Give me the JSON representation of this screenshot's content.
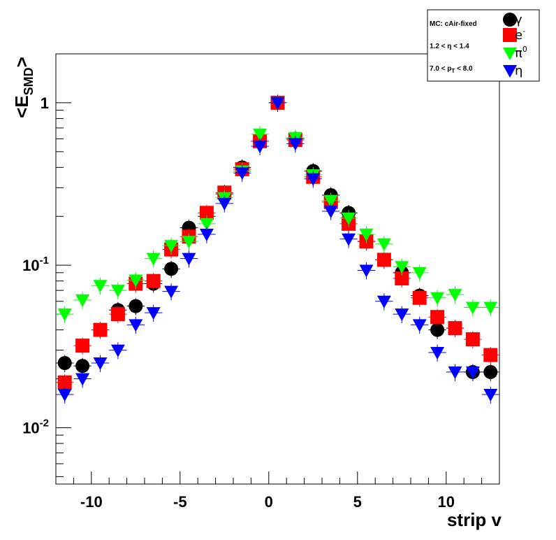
{
  "chart_data": {
    "type": "scatter",
    "xlabel": "strip v",
    "ylabel_main": "<E",
    "ylabel_sub": "SMD",
    "ylabel_end": ">",
    "xlim": [
      -12,
      13
    ],
    "ylim": [
      0.0045,
      2.0
    ],
    "yscale": "log",
    "xticks": [
      -10,
      -5,
      0,
      5,
      10
    ],
    "yticks": [
      {
        "value": 1,
        "base": "1",
        "exp": ""
      },
      {
        "value": 0.1,
        "base": "10",
        "exp": "-1"
      },
      {
        "value": 0.01,
        "base": "10",
        "exp": "-2"
      }
    ],
    "legend_position": "top-right",
    "legend_info": [
      {
        "main": "MC: cAir-fixed",
        "sub": "",
        "rest": ""
      },
      {
        "main": "1.2 < η < 1.4",
        "sub": "",
        "rest": ""
      },
      {
        "main": "7.0 < p",
        "sub": "T",
        "rest": " < 8.0"
      }
    ],
    "series": [
      {
        "name": "γ",
        "name_sup": "",
        "marker": "circle",
        "color": "#000000",
        "x": [
          -11.5,
          -10.5,
          -9.5,
          -8.5,
          -7.5,
          -6.5,
          -5.5,
          -4.5,
          -3.5,
          -2.5,
          -1.5,
          -0.5,
          0.5,
          1.5,
          2.5,
          3.5,
          4.5,
          5.5,
          6.5,
          7.5,
          8.5,
          9.5,
          10.5,
          11.5,
          12.5
        ],
        "y": [
          0.025,
          0.024,
          0.04,
          0.053,
          0.056,
          0.077,
          0.095,
          0.17,
          0.2,
          0.275,
          0.4,
          0.58,
          1.0,
          0.6,
          0.38,
          0.27,
          0.21,
          0.14,
          0.108,
          0.09,
          0.065,
          0.04,
          0.041,
          0.022,
          0.022
        ]
      },
      {
        "name": "e",
        "name_sup": "-",
        "marker": "square",
        "color": "#ff0000",
        "x": [
          -11.5,
          -10.5,
          -9.5,
          -8.5,
          -7.5,
          -6.5,
          -5.5,
          -4.5,
          -3.5,
          -2.5,
          -1.5,
          -0.5,
          0.5,
          1.5,
          2.5,
          3.5,
          4.5,
          5.5,
          6.5,
          7.5,
          8.5,
          9.5,
          10.5,
          11.5,
          12.5
        ],
        "y": [
          0.019,
          0.032,
          0.04,
          0.05,
          0.077,
          0.08,
          0.125,
          0.15,
          0.21,
          0.28,
          0.39,
          0.58,
          1.0,
          0.59,
          0.35,
          0.245,
          0.18,
          0.14,
          0.108,
          0.083,
          0.063,
          0.048,
          0.041,
          0.035,
          0.028
        ]
      },
      {
        "name": "π",
        "name_sup": "0",
        "marker": "triangle-down",
        "color": "#00ff00",
        "x": [
          -11.5,
          -10.5,
          -9.5,
          -8.5,
          -7.5,
          -6.5,
          -5.5,
          -4.5,
          -3.5,
          -2.5,
          -1.5,
          -0.5,
          0.5,
          1.5,
          2.5,
          3.5,
          4.5,
          5.5,
          6.5,
          7.5,
          8.5,
          9.5,
          10.5,
          11.5,
          12.5
        ],
        "y": [
          0.05,
          0.061,
          0.075,
          0.07,
          0.081,
          0.11,
          0.132,
          0.14,
          0.18,
          0.26,
          0.38,
          0.64,
          1.0,
          0.61,
          0.36,
          0.25,
          0.195,
          0.155,
          0.135,
          0.098,
          0.09,
          0.063,
          0.066,
          0.055,
          0.055
        ]
      },
      {
        "name": "η",
        "name_sup": "",
        "marker": "triangle-down",
        "color": "#0000ff",
        "x": [
          -11.5,
          -10.5,
          -9.5,
          -8.5,
          -7.5,
          -6.5,
          -5.5,
          -4.5,
          -3.5,
          -2.5,
          -1.5,
          -0.5,
          0.5,
          1.5,
          2.5,
          3.5,
          4.5,
          5.5,
          6.5,
          7.5,
          8.5,
          9.5,
          10.5,
          11.5,
          12.5
        ],
        "y": [
          0.016,
          0.02,
          0.025,
          0.03,
          0.043,
          0.051,
          0.069,
          0.11,
          0.155,
          0.24,
          0.37,
          0.54,
          1.0,
          0.56,
          0.34,
          0.215,
          0.145,
          0.093,
          0.06,
          0.05,
          0.043,
          0.029,
          0.022,
          0.022,
          0.016
        ]
      }
    ]
  }
}
